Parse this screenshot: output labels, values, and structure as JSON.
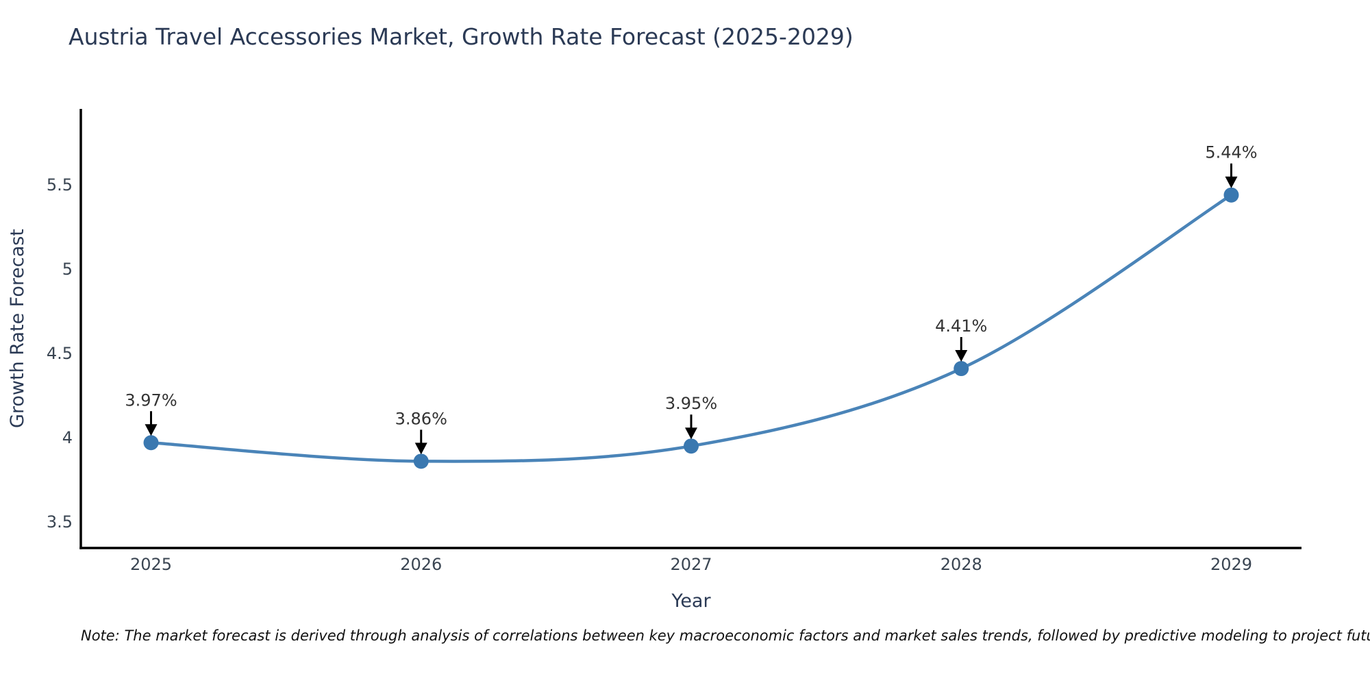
{
  "title": "Austria Travel Accessories Market, Growth Rate Forecast (2025-2029)",
  "note": "Note: The market forecast is derived through analysis of correlations between key macroeconomic factors and market sales trends, followed by predictive modeling to project future sales",
  "colors": {
    "title_text": "#2b3a55",
    "axis_title_text": "#2b3a55",
    "tick_text": "#3a4552",
    "annotation_text": "#333333",
    "line": "#4a84b8",
    "marker": "#3a78b0",
    "axis_line": "#000000",
    "arrow": "#000000",
    "background": "#ffffff"
  },
  "chart_data": {
    "type": "line",
    "x": [
      2025,
      2026,
      2027,
      2028,
      2029
    ],
    "values": [
      3.97,
      3.86,
      3.95,
      4.41,
      5.44
    ],
    "point_labels": [
      "3.97%",
      "3.86%",
      "3.95%",
      "4.41%",
      "5.44%"
    ],
    "series_name": "Growth Rate Forecast",
    "title": "Austria Travel Accessories Market, Growth Rate Forecast (2025-2029)",
    "xlabel": "Year",
    "ylabel": "Growth Rate Forecast",
    "xticks": [
      "2025",
      "2026",
      "2027",
      "2028",
      "2029"
    ],
    "yticks": [
      3.5,
      4,
      4.5,
      5,
      5.5
    ],
    "xlim": [
      2024.74,
      2029.26
    ],
    "ylim": [
      3.345,
      5.951
    ],
    "grid": false,
    "legend": "none",
    "line_smoothing": "spline",
    "marker_style": "circle",
    "annotation_style": "value-label-with-down-arrow"
  }
}
